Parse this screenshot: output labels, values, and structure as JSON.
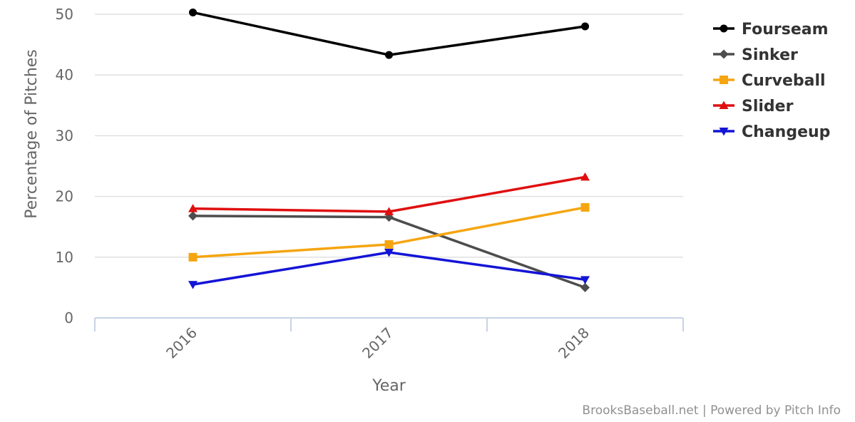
{
  "chart_data": {
    "type": "line",
    "title": "",
    "xlabel": "Year",
    "ylabel": "Percentage of Pitches",
    "categories": [
      "2016",
      "2017",
      "2018"
    ],
    "ylim": [
      0,
      50
    ],
    "yticks": [
      "0",
      "10",
      "20",
      "30",
      "40",
      "50"
    ],
    "grid": true,
    "legend_position": "right",
    "series": [
      {
        "name": "Fourseam",
        "color": "#000000",
        "marker": "circle",
        "values": [
          50.3,
          43.3,
          48.0
        ]
      },
      {
        "name": "Sinker",
        "color": "#4d4d4d",
        "marker": "diamond",
        "values": [
          16.8,
          16.6,
          5.0
        ]
      },
      {
        "name": "Curveball",
        "color": "#f5a511",
        "marker": "square",
        "values": [
          10.0,
          12.1,
          18.2
        ]
      },
      {
        "name": "Slider",
        "color": "#e00f0f",
        "marker": "triangle",
        "values": [
          18.0,
          17.5,
          23.2
        ]
      },
      {
        "name": "Changeup",
        "color": "#1414d6",
        "marker": "triangle-down",
        "values": [
          5.5,
          10.8,
          6.3
        ]
      }
    ]
  },
  "credits": "BrooksBaseball.net | Powered by Pitch Info"
}
